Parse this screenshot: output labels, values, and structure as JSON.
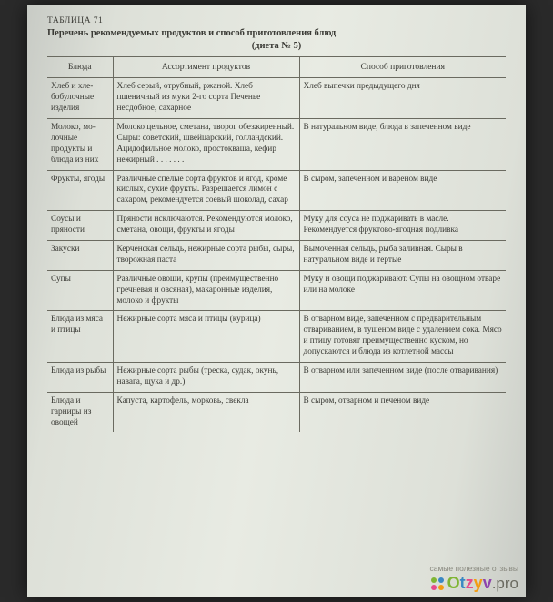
{
  "tableNumber": "ТАБЛИЦА 71",
  "title": "Перечень рекомендуемых продуктов и способ приготовления блюд",
  "subtitle": "(диета № 5)",
  "columns": [
    "Блюда",
    "Ассортимент продуктов",
    "Способ приготовления"
  ],
  "rows": [
    {
      "c1": "Хлеб и хле­бобулоч­ные изде­лия",
      "c2": "Хлеб серый, отрубный, ржаной. Хлеб пшеничный из муки 2-го сорта\nПеченье несдобное, сахарное",
      "c3": "Хлеб выпечки предыдущего дня"
    },
    {
      "c1": "Молоко, мо­лочные продукты и блюда из них",
      "c2": "Молоко цельное, сметана, тво­рог обезжиренный. Сыры: советский, швейцарский, голландский. Ацидофильное молоко, простокваша, кефир нежирный . . . . . . .",
      "c3": "В натуральном виде, блюда в запеченном виде"
    },
    {
      "c1": "Фрукты, ягоды",
      "c2": "Различные спелые сорта фрук­тов и ягод, кроме кислых, сухие фрукты. Разрешается лимон с сахаром, рекомен­дуется соевый шоколад, са­хар",
      "c3": "В сыром, запеченном и варе­ном виде"
    },
    {
      "c1": "Соусы и пряности",
      "c2": "Пряности исключаются. Ре­комендуются молоко, смета­на, овощи, фрукты и ягоды",
      "c3": "Муку для соуса не поджари­вать в масле. Рекомендуется фруктово-ягодная подливка"
    },
    {
      "c1": "Закуски",
      "c2": "Керченская сельдь, нежирные сорта рыбы, сыры, творож­ная паста",
      "c3": "Вымоченная сельдь, рыба за­ливная.\nСыры в натуральном виде и тертые"
    },
    {
      "c1": "Супы",
      "c2": "Различные овощи, крупы (пре­имущественно гречневая и овсяная), макаронные изде­лия, молоко и фрукты",
      "c3": "Муку и овощи поджаривают. Супы на овощном отваре или на молоке"
    },
    {
      "c1": "Блюда из мяса и птицы",
      "c2": "Нежирные сорта мяса и птицы (курица)",
      "c3": "В отварном виде, запеченном с предварительным отвари­ванием, в тушеном виде с удалением сока. Мясо и пти­цу готовят преимуществен­но куском, но допускаются и блюда из котлетной массы"
    },
    {
      "c1": "Блюда из рыбы",
      "c2": "Нежирные сорта рыбы (треска, судак, окунь, навага, щука и др.)",
      "c3": "В отварном или запеченном ви­де (после отваривания)"
    },
    {
      "c1": "Блюда и гарниры из овощей",
      "c2": "Капуста, картофель, морковь, свекла",
      "c3": "В сыром, отварном и печеном виде"
    }
  ],
  "watermark": {
    "tagline": "самые полезные отзывы",
    "brand": "Otzyv.pro",
    "dotColors": [
      "#7fb534",
      "#3a88c4",
      "#e64a8b",
      "#f39c12"
    ]
  }
}
